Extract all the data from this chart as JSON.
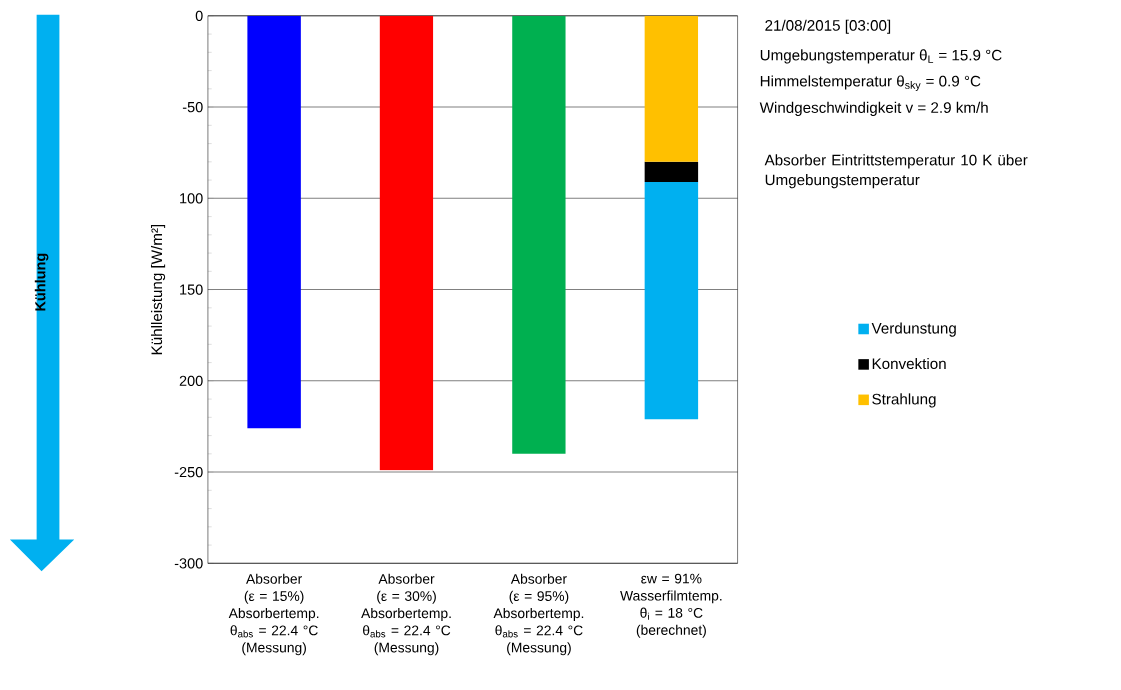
{
  "chart_data": {
    "type": "bar",
    "stacked": true,
    "ylabel": "Kühlleistung [W/m²]",
    "categories": [
      "Absorber\n(ε = 15%)\nAbsorbertemp.\nθ$_{abs}$ = 22.4 °C\n(Messung)",
      "Absorber\n(ε = 30%)\nAbsorbertemp.\nθ$_{abs}$ = 22.4 °C\n(Messung)",
      "Absorber\n(ε = 95%)\nAbsorbertemp.\nθ$_{abs}$ = 22.4 °C\n(Messung)",
      "εw = 91%\nWasserfilmtemp.\nθ$_{i}$ = 18 °C\n(berechnet)"
    ],
    "series": [
      {
        "colors": [
          "#0000ff",
          "#ff0000",
          "#00b050",
          null
        ],
        "values": [
          -226,
          -249,
          -240,
          null
        ]
      },
      {
        "name": "Strahlung",
        "color": "#ffc000",
        "values": [
          null,
          null,
          null,
          -80
        ]
      },
      {
        "name": "Konvektion",
        "color": "#000000",
        "values": [
          null,
          null,
          null,
          -11
        ]
      },
      {
        "name": "Verdunstung",
        "color": "#00b0f0",
        "values": [
          null,
          null,
          null,
          -130
        ]
      }
    ],
    "ylim": [
      -300,
      0
    ],
    "yticks": [
      0,
      -50,
      {
        "value": -100,
        "label": "100"
      },
      {
        "value": -150,
        "label": "150"
      },
      {
        "value": -200,
        "label": "200"
      },
      -250,
      -300
    ],
    "grid": "y",
    "legend": "right",
    "annotations": [
      "21/08/2015 [03:00]",
      "Umgebungstemperatur θ$_{L}$ = 15.9 °C",
      "Himmelstemperatur θ$_{sky}$ = 0.9 °C",
      "Windgeschwindigkeit v = 2.9 km/h",
      "Absorber Eintrittstemperatur 10 K über Umgebungstemperatur",
      "Kühlung"
    ]
  }
}
